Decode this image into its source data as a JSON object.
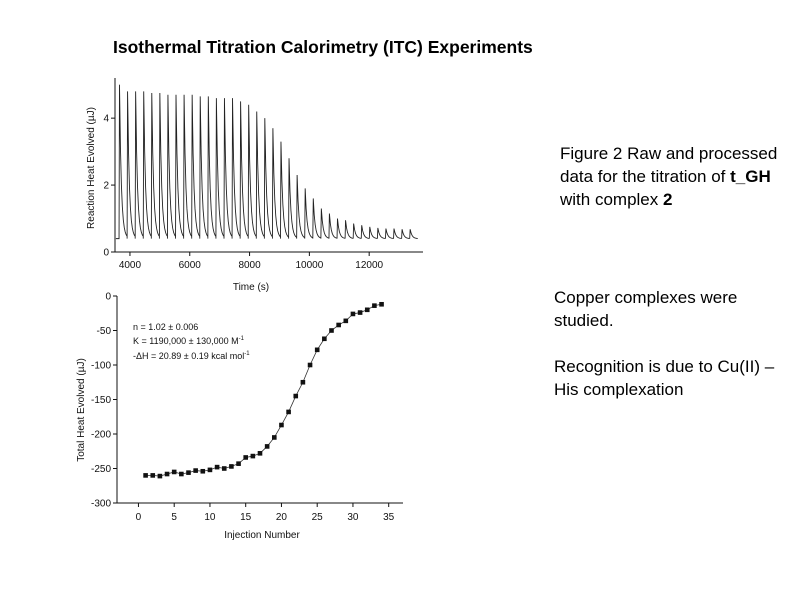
{
  "slide": {
    "title": "Isothermal Titration Calorimetry (ITC) Experiments",
    "caption": {
      "prefix": "Figure 2 Raw and processed data for the titration of ",
      "compound": "t_GH",
      "middle": " with complex ",
      "complex": "2"
    },
    "notes": [
      "Copper complexes were studied.",
      "Recognition is due to Cu(II) – His complexation"
    ]
  },
  "chart_data": [
    {
      "type": "line",
      "title": "",
      "xlabel": "Time (s)",
      "ylabel": "Reaction Heat Evolved (µJ)",
      "xlim": [
        3500,
        13800
      ],
      "ylim": [
        0,
        5.2
      ],
      "xticks": [
        4000,
        6000,
        8000,
        10000,
        12000
      ],
      "yticks": [
        0,
        2,
        4
      ],
      "baseline": 0.4,
      "peak_times": [
        3650,
        3920,
        4190,
        4460,
        4730,
        5000,
        5270,
        5540,
        5810,
        6080,
        6350,
        6620,
        6890,
        7160,
        7430,
        7700,
        7970,
        8240,
        8510,
        8780,
        9050,
        9320,
        9590,
        9860,
        10130,
        10400,
        10670,
        10940,
        11210,
        11480,
        11750,
        12020,
        12290,
        12560,
        12830,
        13100,
        13370
      ],
      "peak_heights": [
        5.0,
        4.8,
        4.8,
        4.8,
        4.75,
        4.75,
        4.7,
        4.7,
        4.7,
        4.7,
        4.65,
        4.65,
        4.6,
        4.6,
        4.6,
        4.5,
        4.4,
        4.2,
        4.0,
        3.7,
        3.3,
        2.8,
        2.3,
        1.9,
        1.6,
        1.3,
        1.15,
        1.0,
        0.95,
        0.85,
        0.8,
        0.75,
        0.72,
        0.7,
        0.7,
        0.68,
        0.68
      ]
    },
    {
      "type": "scatter",
      "title": "",
      "xlabel": "Injection Number",
      "ylabel": "Total Heat Evolved (µJ)",
      "xlim": [
        -3,
        37
      ],
      "ylim": [
        -300,
        0
      ],
      "xticks": [
        0,
        5,
        10,
        15,
        20,
        25,
        30,
        35
      ],
      "yticks": [
        0,
        -50,
        -100,
        -150,
        -200,
        -250,
        -300
      ],
      "annotations": [
        "n = 1.02 ± 0.006",
        "K = 1190,000 ± 130,000 M",
        "-ΔH = 20.89 ± 0.19 kcal mol"
      ],
      "annotation_superscripts": [
        "-1",
        "-1"
      ],
      "x": [
        1,
        2,
        3,
        4,
        5,
        6,
        7,
        8,
        9,
        10,
        11,
        12,
        13,
        14,
        15,
        16,
        17,
        18,
        19,
        20,
        21,
        22,
        23,
        24,
        25,
        26,
        27,
        28,
        29,
        30,
        31,
        32,
        33,
        34
      ],
      "y": [
        -260,
        -260,
        -261,
        -258,
        -255,
        -258,
        -256,
        -253,
        -254,
        -252,
        -248,
        -250,
        -247,
        -243,
        -234,
        -232,
        -228,
        -218,
        -205,
        -187,
        -168,
        -145,
        -125,
        -100,
        -78,
        -62,
        -50,
        -42,
        -36,
        -26,
        -24,
        -20,
        -14,
        -12
      ]
    }
  ]
}
